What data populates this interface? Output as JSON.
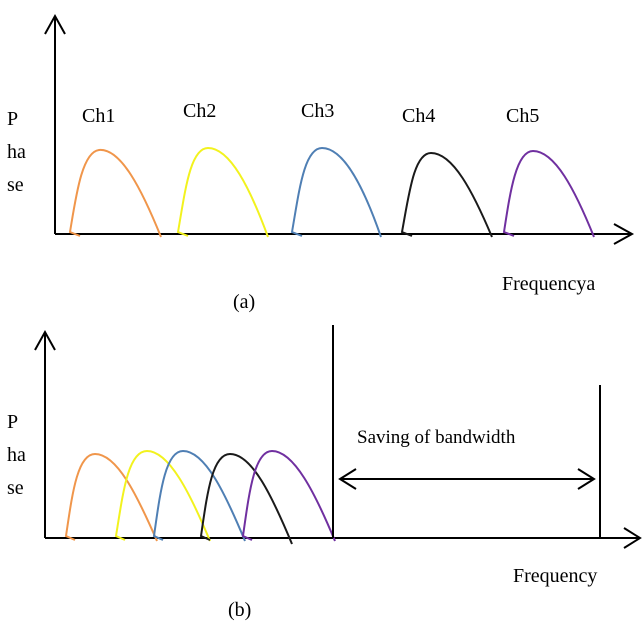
{
  "panel_a": {
    "y_label": [
      "P",
      "ha",
      "se"
    ],
    "x_label": "Frequencya",
    "caption": "(a)",
    "channels": [
      {
        "label": "Ch1",
        "color": "#f0964b"
      },
      {
        "label": "Ch2",
        "color": "#f2f21e"
      },
      {
        "label": "Ch3",
        "color": "#4f7fb4"
      },
      {
        "label": "Ch4",
        "color": "#1a1a1a"
      },
      {
        "label": "Ch5",
        "color": "#7030a0"
      }
    ]
  },
  "panel_b": {
    "y_label": [
      "P",
      "ha",
      "se"
    ],
    "x_label": "Frequency",
    "caption": "(b)",
    "annotation": "Saving of bandwidth",
    "channel_colors": [
      "#f0964b",
      "#f2f21e",
      "#4f7fb4",
      "#1a1a1a",
      "#7030a0"
    ]
  }
}
